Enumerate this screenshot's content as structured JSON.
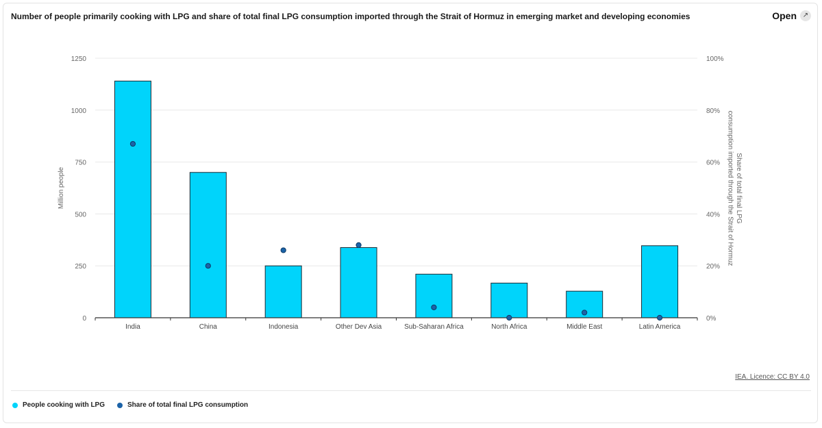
{
  "header": {
    "title": "Number of people primarily cooking with LPG and share of total final LPG consumption imported through the Strait of Hormuz in emerging market and developing economies",
    "open_label": "Open"
  },
  "footer": {
    "credit": "IEA. Licence: CC BY 4.0"
  },
  "colors": {
    "bar_fill": "#00d4fb",
    "bar_stroke": "#1f2a33",
    "dot_fill": "#1c63a8",
    "dot_stroke": "#0d3a66",
    "grid": "#e8e8e8",
    "axis_text": "#666666"
  },
  "chart_data": {
    "type": "bar",
    "categories": [
      "India",
      "China",
      "Indonesia",
      "Other Dev Asia",
      "Sub-Saharan Africa",
      "North Africa",
      "Middle East",
      "Latin America"
    ],
    "series": [
      {
        "name": "People cooking with LPG",
        "type": "bar",
        "axis": "left",
        "values": [
          1140,
          700,
          250,
          338,
          210,
          167,
          128,
          347
        ]
      },
      {
        "name": "Share of total final LPG consumption",
        "type": "scatter",
        "axis": "right",
        "values": [
          67,
          20,
          26,
          28,
          4,
          0,
          2,
          0
        ]
      }
    ],
    "ylabel": "Million people",
    "y2label": "Share of total final LPG consumption imported through the Strait of Hormuz",
    "ylim": [
      0,
      1250
    ],
    "y2lim": [
      0,
      100
    ],
    "yticks": [
      "0",
      "250",
      "500",
      "750",
      "1000",
      "1250"
    ],
    "y2ticks": [
      "0%",
      "20%",
      "40%",
      "60%",
      "80%",
      "100%"
    ],
    "grid": true,
    "legend_position": "bottom-left"
  }
}
